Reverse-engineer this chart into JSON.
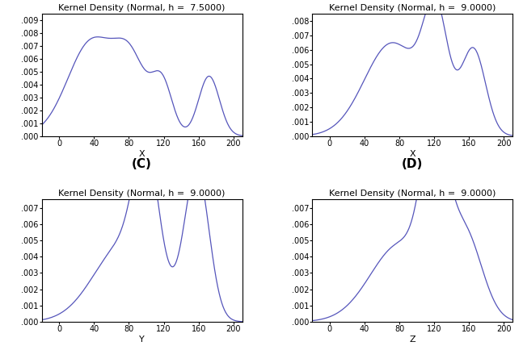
{
  "panels": [
    {
      "title": "Kernel Density (Normal, h =  7.5000)",
      "xlabel": "X",
      "label": "(C)",
      "ylim": [
        0,
        0.0095
      ],
      "yticks": [
        0.0,
        0.001,
        0.002,
        0.003,
        0.004,
        0.005,
        0.006,
        0.007,
        0.008,
        0.009
      ],
      "ytick_labels": [
        ".000",
        ".001",
        ".002",
        ".003",
        ".004",
        ".005",
        ".006",
        ".007",
        ".008",
        ".009"
      ],
      "xlim": [
        -20,
        210
      ],
      "xticks": [
        0,
        40,
        80,
        120,
        160,
        200
      ],
      "components": [
        {
          "mu": 38,
          "sigma": 28,
          "weight": 0.52
        },
        {
          "mu": 83,
          "sigma": 18,
          "weight": 0.22
        },
        {
          "mu": 118,
          "sigma": 12,
          "weight": 0.12
        },
        {
          "mu": 172,
          "sigma": 12,
          "weight": 0.14
        }
      ]
    },
    {
      "title": "Kernel Density (Normal, h =  9.0000)",
      "xlabel": "X",
      "label": "(D)",
      "ylim": [
        0,
        0.0085
      ],
      "yticks": [
        0.0,
        0.001,
        0.002,
        0.003,
        0.004,
        0.005,
        0.006,
        0.007,
        0.008
      ],
      "ytick_labels": [
        ".000",
        ".001",
        ".002",
        ".003",
        ".004",
        ".005",
        ".006",
        ".007",
        ".008"
      ],
      "xlim": [
        -20,
        210
      ],
      "xticks": [
        0,
        40,
        80,
        120,
        160,
        200
      ],
      "components": [
        {
          "mu": 72,
          "sigma": 32,
          "weight": 0.52
        },
        {
          "mu": 122,
          "sigma": 14,
          "weight": 0.27
        },
        {
          "mu": 165,
          "sigma": 14,
          "weight": 0.21
        }
      ]
    },
    {
      "title": "Kernel Density (Normal, h =  9.0000)",
      "xlabel": "Y",
      "label": "",
      "ylim": [
        0,
        0.0075
      ],
      "yticks": [
        0.0,
        0.001,
        0.002,
        0.003,
        0.004,
        0.005,
        0.006,
        0.007
      ],
      "ytick_labels": [
        ".000",
        ".001",
        ".002",
        ".003",
        ".004",
        ".005",
        ".006",
        ".007"
      ],
      "xlim": [
        -20,
        210
      ],
      "xticks": [
        0,
        40,
        80,
        120,
        160,
        200
      ],
      "components": [
        {
          "mu": 75,
          "sigma": 35,
          "weight": 0.42
        },
        {
          "mu": 100,
          "sigma": 14,
          "weight": 0.26
        },
        {
          "mu": 158,
          "sigma": 14,
          "weight": 0.32
        }
      ]
    },
    {
      "title": "Kernel Density (Normal, h =  9.0000)",
      "xlabel": "Z",
      "label": "",
      "ylim": [
        0,
        0.0075
      ],
      "yticks": [
        0.0,
        0.001,
        0.002,
        0.003,
        0.004,
        0.005,
        0.006,
        0.007
      ],
      "ytick_labels": [
        ".000",
        ".001",
        ".002",
        ".003",
        ".004",
        ".005",
        ".006",
        ".007"
      ],
      "xlim": [
        -20,
        210
      ],
      "xticks": [
        0,
        40,
        80,
        120,
        160,
        200
      ],
      "components": [
        {
          "mu": 82,
          "sigma": 35,
          "weight": 0.42
        },
        {
          "mu": 120,
          "sigma": 14,
          "weight": 0.32
        },
        {
          "mu": 155,
          "sigma": 20,
          "weight": 0.26
        }
      ]
    }
  ],
  "panel_labels_top": [
    "(C)",
    "(D)"
  ],
  "background_color": "#ffffff",
  "line_color": "#5555bb",
  "title_fontsize": 8,
  "label_fontsize": 11,
  "tick_fontsize": 7
}
